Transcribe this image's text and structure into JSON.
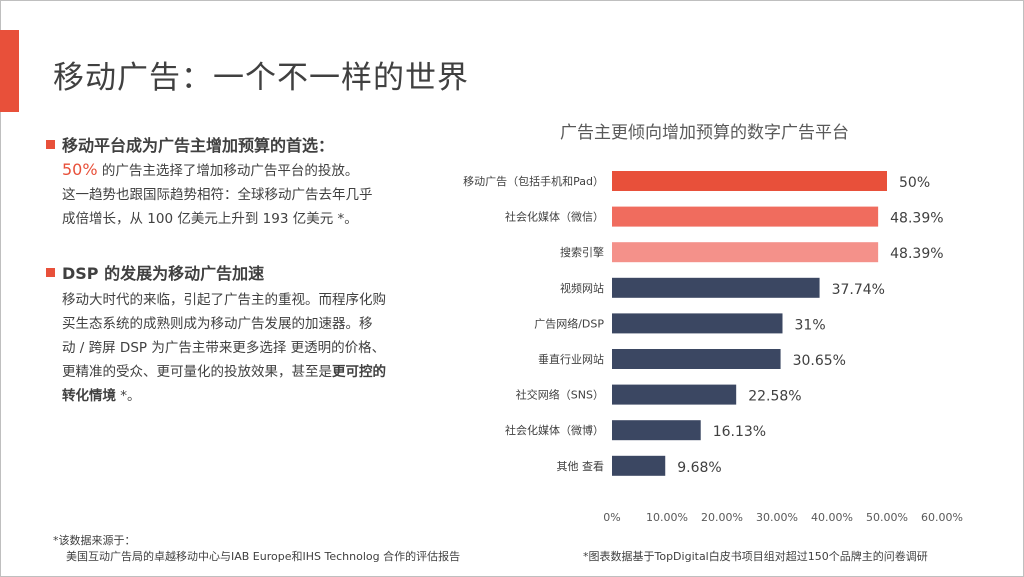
{
  "slide": {
    "title": "移动广告：一个不一样的世界"
  },
  "section1": {
    "heading": "移动平台成为广告主增加预算的首选：",
    "highlight_pct": "50%",
    "line1_rest": " 的广告主选择了增加移动广告平台的投放。",
    "line2": "这一趋势也跟国际趋势相符：全球移动广告去年几乎",
    "line3": "成倍增长，从 100 亿美元上升到 193 亿美元 *。"
  },
  "section2": {
    "heading": "DSP 的发展为移动广告加速",
    "line1": "移动大时代的来临，引起了广告主的重视。而程序化购",
    "line2": "买生态系统的成熟则成为移动广告发展的加速器。移",
    "line3": "动 / 跨屏 DSP 为广告主带来更多选择  更透明的价格、",
    "line4_plain": "更精准的受众、更可量化的投放效果，甚至是",
    "line4_bold": "更可控的",
    "line5_bold": "转化情境",
    "line5_rest": " *。"
  },
  "notes": {
    "source_line1": "*该数据来源于：",
    "source_line2": "美国互动广告局的卓越移动中心与IAB Europe和IHS Technolog 合作的评估报告",
    "chart_note": "*图表数据基于TopDigital白皮书项目组对超过150个品牌主的问卷调研"
  },
  "chart_data": {
    "type": "bar",
    "orientation": "horizontal",
    "title": "广告主更倾向增加预算的数字广告平台",
    "categories": [
      "移动广告（包括手机和Pad）",
      "社会化媒体（微信）",
      "搜索引擎",
      "视频网站",
      "广告网络/DSP",
      "垂直行业网站",
      "社交网络（SNS）",
      "社会化媒体（微博）",
      "其他 查看"
    ],
    "values": [
      50,
      48.39,
      48.39,
      37.74,
      31,
      30.65,
      22.58,
      16.13,
      9.68
    ],
    "value_labels": [
      "50%",
      "48.39%",
      "48.39%",
      "37.74%",
      "31%",
      "30.65%",
      "22.58%",
      "16.13%",
      "9.68%"
    ],
    "colors": [
      "#e8503a",
      "#f06c5e",
      "#f4918a",
      "#3b4762",
      "#3b4762",
      "#3b4762",
      "#3b4762",
      "#3b4762",
      "#3b4762"
    ],
    "xlim": [
      0,
      60
    ],
    "xticks": [
      "0%",
      "10.00%",
      "20.00%",
      "30.00%",
      "40.00%",
      "50.00%",
      "60.00%"
    ],
    "grid": false
  }
}
